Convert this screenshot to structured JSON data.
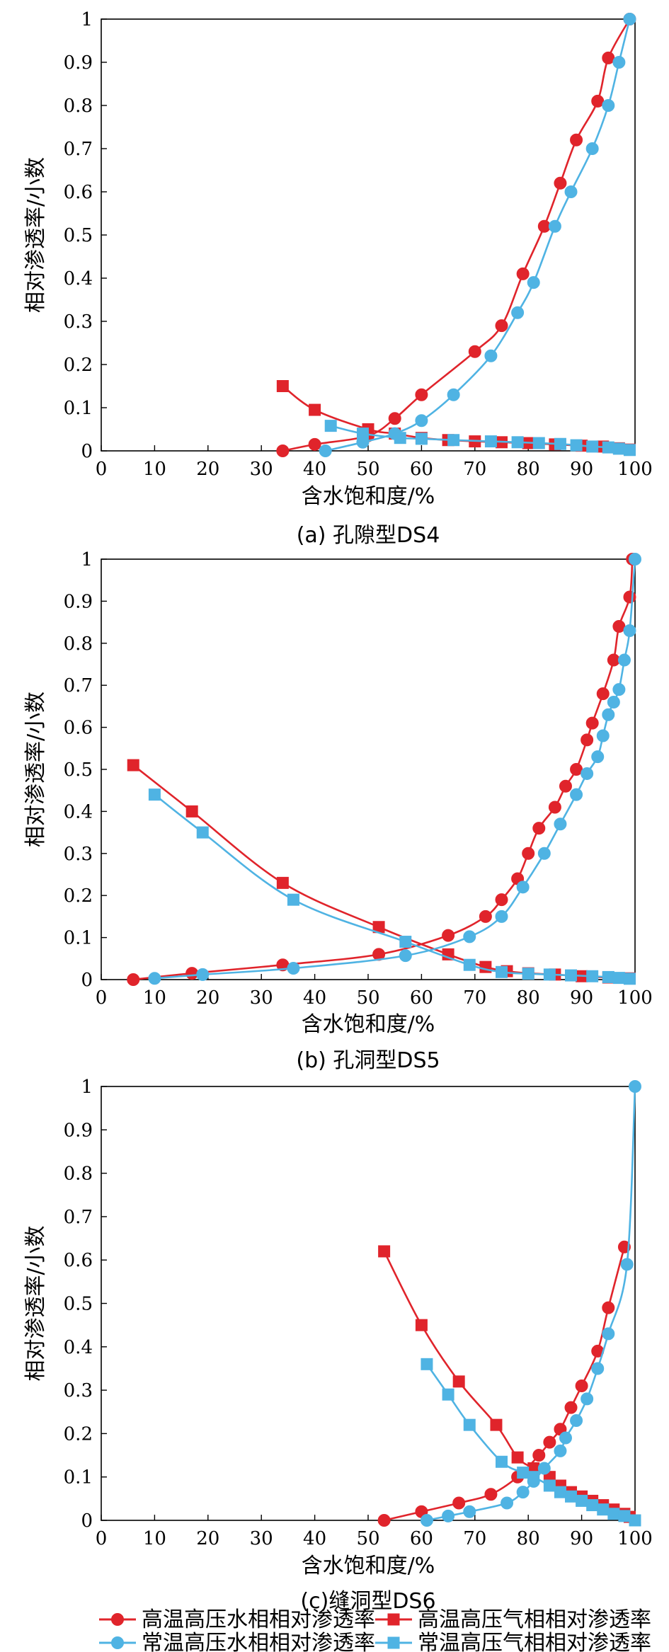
{
  "colors": {
    "red": "#e0242b",
    "blue": "#4fb3e3"
  },
  "legend": [
    {
      "key": "hh_water",
      "label": "高温高压水相相对渗透率",
      "color": "red",
      "marker": "circle"
    },
    {
      "key": "hh_gas",
      "label": "高温高压气相相对渗透率",
      "color": "red",
      "marker": "square"
    },
    {
      "key": "nh_water",
      "label": "常温高压水相相对渗透率",
      "color": "blue",
      "marker": "circle"
    },
    {
      "key": "nh_gas",
      "label": "常温高压气相相对渗透率",
      "color": "blue",
      "marker": "square"
    }
  ],
  "chart_data": [
    {
      "type": "line",
      "caption": "(a) 孔隙型DS4",
      "xlabel": "含水饱和度/%",
      "ylabel": "相对渗透率/小数",
      "xlim": [
        0,
        100
      ],
      "ylim": [
        0,
        1
      ],
      "xticks": [
        0,
        10,
        20,
        30,
        40,
        50,
        60,
        70,
        80,
        90,
        100
      ],
      "yticks": [
        0,
        0.1,
        0.2,
        0.3,
        0.4,
        0.5,
        0.6,
        0.7,
        0.8,
        0.9,
        1
      ],
      "ytick_labels": [
        "0",
        "0.1",
        "0.2",
        "0.3",
        "0.4",
        "0.5",
        "0.6",
        "0.7",
        "0.8",
        "0.9",
        "1"
      ],
      "series": [
        {
          "key": "hh_water",
          "color": "red",
          "marker": "circle",
          "x": [
            34,
            40,
            50,
            55,
            60,
            70,
            75,
            79,
            83,
            86,
            89,
            93,
            95,
            99
          ],
          "y": [
            0,
            0.015,
            0.035,
            0.075,
            0.13,
            0.23,
            0.29,
            0.41,
            0.52,
            0.62,
            0.72,
            0.81,
            0.91,
            1
          ]
        },
        {
          "key": "hh_gas",
          "color": "red",
          "marker": "square",
          "x": [
            34,
            40,
            50,
            55,
            60,
            65,
            70,
            75,
            80,
            85,
            90,
            94,
            97,
            99
          ],
          "y": [
            0.15,
            0.095,
            0.05,
            0.04,
            0.03,
            0.025,
            0.022,
            0.02,
            0.018,
            0.015,
            0.012,
            0.01,
            0.006,
            0.003
          ]
        },
        {
          "key": "nh_water",
          "color": "blue",
          "marker": "circle",
          "x": [
            42,
            49,
            55,
            60,
            66,
            73,
            78,
            81,
            85,
            88,
            92,
            95,
            97,
            99
          ],
          "y": [
            0,
            0.02,
            0.04,
            0.07,
            0.13,
            0.22,
            0.32,
            0.39,
            0.52,
            0.6,
            0.7,
            0.8,
            0.9,
            1
          ]
        },
        {
          "key": "nh_gas",
          "color": "blue",
          "marker": "square",
          "x": [
            43,
            49,
            56,
            60,
            66,
            73,
            78,
            82,
            86,
            89,
            92,
            95,
            97,
            99
          ],
          "y": [
            0.058,
            0.04,
            0.03,
            0.028,
            0.025,
            0.022,
            0.02,
            0.018,
            0.016,
            0.013,
            0.01,
            0.008,
            0.005,
            0.002
          ]
        }
      ]
    },
    {
      "type": "line",
      "caption": "(b) 孔洞型DS5",
      "xlabel": "含水饱和度/%",
      "ylabel": "相对渗透率/小数",
      "xlim": [
        0,
        100
      ],
      "ylim": [
        0,
        1
      ],
      "xticks": [
        0,
        10,
        20,
        30,
        40,
        50,
        60,
        70,
        80,
        90,
        100
      ],
      "yticks": [
        0,
        0.1,
        0.2,
        0.3,
        0.4,
        0.5,
        0.6,
        0.7,
        0.8,
        0.9,
        1
      ],
      "ytick_labels": [
        "0",
        "0.1",
        "0.2",
        "0.3",
        "0.4",
        "0.5",
        "0.6",
        "0.7",
        "0.8",
        "0.9",
        "1"
      ],
      "series": [
        {
          "key": "hh_water",
          "color": "red",
          "marker": "circle",
          "x": [
            6,
            17,
            34,
            52,
            65,
            72,
            75,
            78,
            80,
            82,
            85,
            87,
            89,
            91,
            92,
            94,
            96,
            97,
            99,
            99.5
          ],
          "y": [
            0,
            0.015,
            0.035,
            0.06,
            0.105,
            0.15,
            0.19,
            0.24,
            0.3,
            0.36,
            0.41,
            0.46,
            0.5,
            0.57,
            0.61,
            0.68,
            0.76,
            0.84,
            0.91,
            1
          ]
        },
        {
          "key": "hh_gas",
          "color": "red",
          "marker": "square",
          "x": [
            6,
            17,
            34,
            52,
            65,
            72,
            76,
            80,
            85,
            90,
            95,
            99
          ],
          "y": [
            0.51,
            0.4,
            0.23,
            0.125,
            0.06,
            0.03,
            0.02,
            0.015,
            0.012,
            0.008,
            0.005,
            0.003
          ]
        },
        {
          "key": "nh_water",
          "color": "blue",
          "marker": "circle",
          "x": [
            10,
            19,
            36,
            57,
            69,
            75,
            79,
            83,
            86,
            89,
            91,
            93,
            94,
            95,
            96,
            97,
            98,
            99,
            100
          ],
          "y": [
            0.003,
            0.012,
            0.027,
            0.057,
            0.102,
            0.15,
            0.22,
            0.3,
            0.37,
            0.44,
            0.49,
            0.53,
            0.58,
            0.63,
            0.66,
            0.69,
            0.76,
            0.83,
            1
          ]
        },
        {
          "key": "nh_gas",
          "color": "blue",
          "marker": "square",
          "x": [
            10,
            19,
            36,
            57,
            69,
            75,
            80,
            84,
            88,
            92,
            95,
            97,
            99
          ],
          "y": [
            0.44,
            0.35,
            0.19,
            0.09,
            0.035,
            0.018,
            0.014,
            0.012,
            0.01,
            0.008,
            0.006,
            0.004,
            0.002
          ]
        }
      ]
    },
    {
      "type": "line",
      "caption": "(c)缝洞型DS6",
      "xlabel": "含水饱和度/%",
      "ylabel": "相对渗透率/小数",
      "xlim": [
        0,
        100
      ],
      "ylim": [
        0,
        1
      ],
      "xticks": [
        0,
        10,
        20,
        30,
        40,
        50,
        60,
        70,
        80,
        90,
        100
      ],
      "yticks": [
        0,
        0.1,
        0.2,
        0.3,
        0.4,
        0.5,
        0.6,
        0.7,
        0.8,
        0.9,
        1
      ],
      "ytick_labels": [
        "0",
        "0.1",
        "0.2",
        "0.3",
        "0.4",
        "0.5",
        "0.6",
        "0.7",
        "0.8",
        "0.9",
        "1"
      ],
      "series": [
        {
          "key": "hh_water",
          "color": "red",
          "marker": "circle",
          "x": [
            53,
            60,
            67,
            73,
            78,
            82,
            84,
            86,
            88,
            90,
            93,
            95,
            98
          ],
          "y": [
            0,
            0.02,
            0.04,
            0.06,
            0.1,
            0.15,
            0.18,
            0.21,
            0.26,
            0.31,
            0.39,
            0.49,
            0.63
          ]
        },
        {
          "key": "hh_gas",
          "color": "red",
          "marker": "square",
          "x": [
            53,
            60,
            67,
            74,
            78,
            81,
            84,
            86,
            88,
            90,
            92,
            94,
            96,
            98,
            99
          ],
          "y": [
            0.62,
            0.45,
            0.32,
            0.22,
            0.145,
            0.12,
            0.1,
            0.08,
            0.065,
            0.055,
            0.045,
            0.035,
            0.025,
            0.015,
            0.008
          ]
        },
        {
          "key": "nh_water",
          "color": "blue",
          "marker": "circle",
          "x": [
            61,
            65,
            69,
            76,
            79,
            81,
            83,
            86,
            87,
            89,
            91,
            93,
            95,
            98.5,
            100
          ],
          "y": [
            0,
            0.01,
            0.02,
            0.04,
            0.065,
            0.09,
            0.12,
            0.16,
            0.19,
            0.23,
            0.28,
            0.35,
            0.43,
            0.59,
            1
          ]
        },
        {
          "key": "nh_gas",
          "color": "blue",
          "marker": "square",
          "x": [
            61,
            65,
            69,
            75,
            79,
            81,
            84,
            86,
            88,
            90,
            92,
            94,
            96,
            98,
            100
          ],
          "y": [
            0.36,
            0.29,
            0.22,
            0.135,
            0.11,
            0.1,
            0.08,
            0.065,
            0.055,
            0.045,
            0.035,
            0.025,
            0.015,
            0.01,
            0
          ]
        }
      ]
    }
  ]
}
